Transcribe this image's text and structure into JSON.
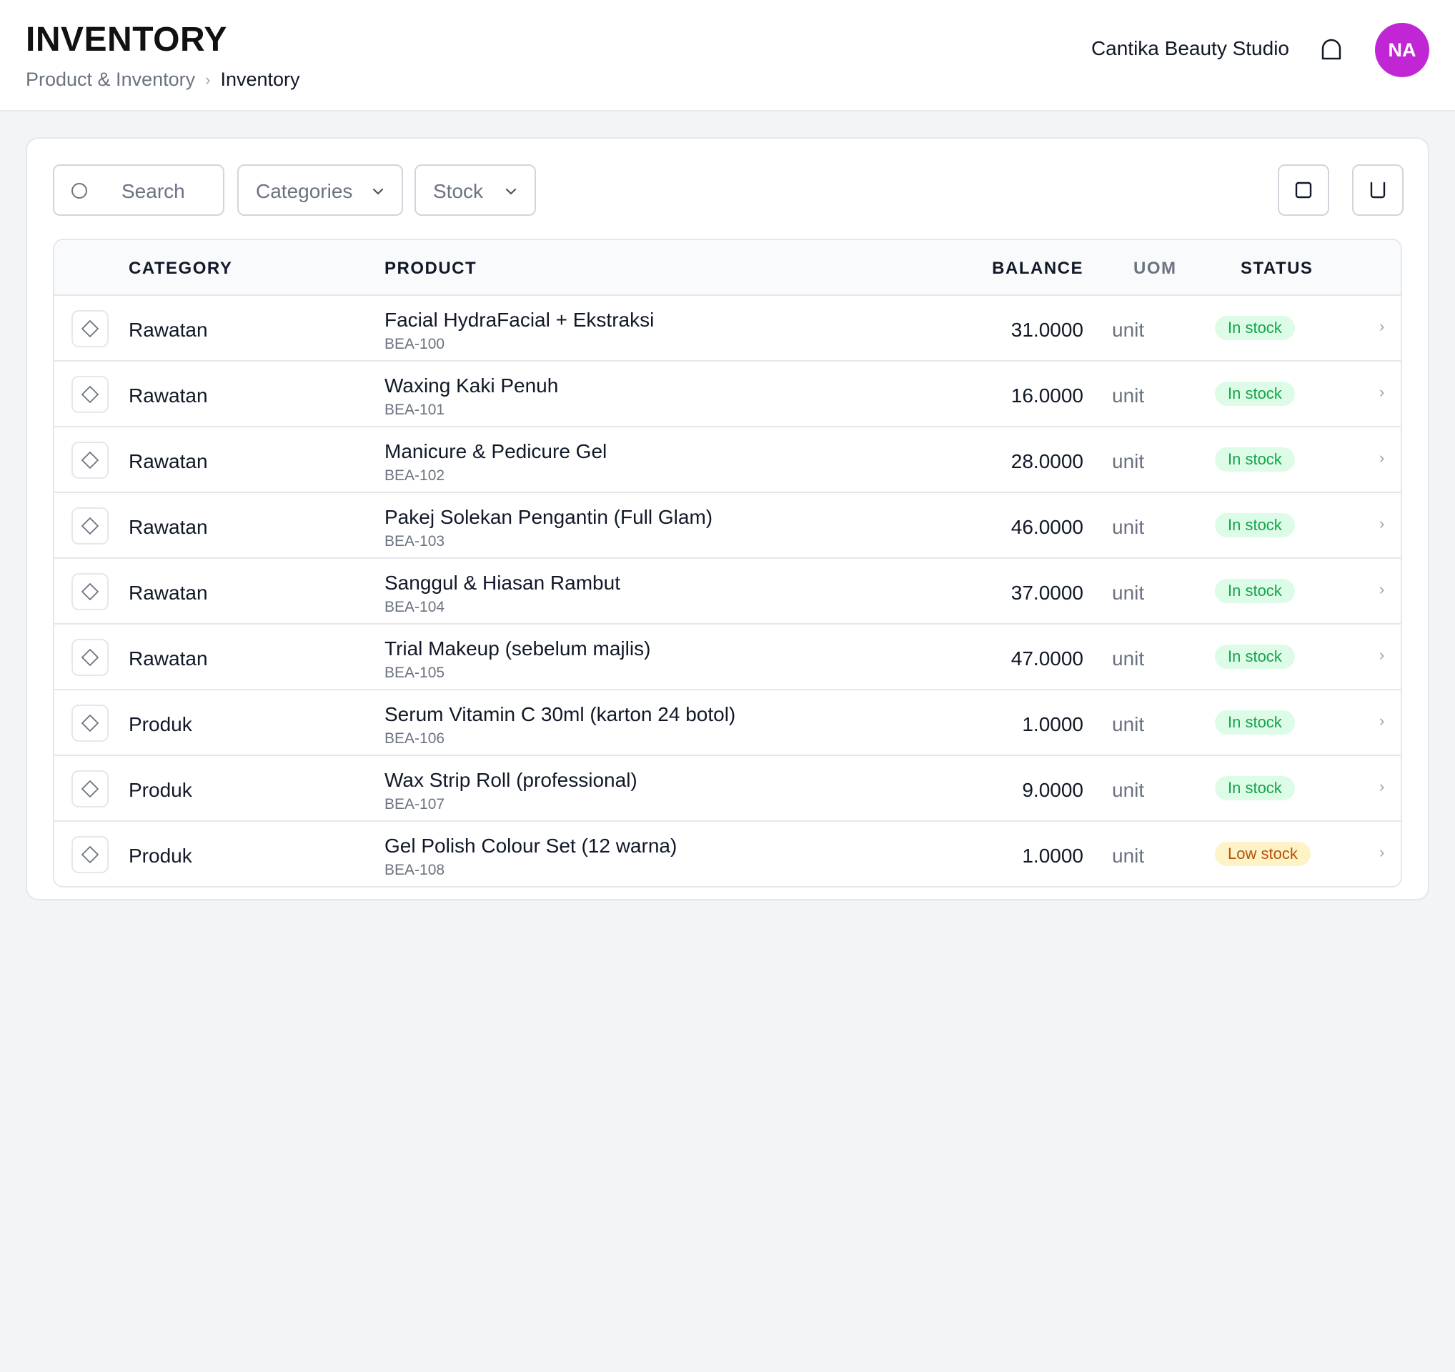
{
  "header": {
    "title": "INVENTORY",
    "breadcrumb": [
      "Product & Inventory",
      "Inventory"
    ],
    "org_name": "Cantika Beauty Studio",
    "avatar_initials": "NA",
    "avatar_color": "#c026d3"
  },
  "filters": {
    "search_placeholder": "Search",
    "categories_label": "Categories",
    "stock_label": "Stock"
  },
  "table": {
    "columns": {
      "category": "CATEGORY",
      "product": "PRODUCT",
      "balance": "BALANCE",
      "uom": "UOM",
      "status": "STATUS"
    },
    "rows": [
      {
        "category": "Rawatan",
        "name": "Facial HydraFacial + Ekstraksi",
        "sku": "BEA-100",
        "balance": "31.0000",
        "uom": "unit",
        "status": "In stock",
        "status_type": "in"
      },
      {
        "category": "Rawatan",
        "name": "Waxing Kaki Penuh",
        "sku": "BEA-101",
        "balance": "16.0000",
        "uom": "unit",
        "status": "In stock",
        "status_type": "in"
      },
      {
        "category": "Rawatan",
        "name": "Manicure & Pedicure Gel",
        "sku": "BEA-102",
        "balance": "28.0000",
        "uom": "unit",
        "status": "In stock",
        "status_type": "in"
      },
      {
        "category": "Rawatan",
        "name": "Pakej Solekan Pengantin (Full Glam)",
        "sku": "BEA-103",
        "balance": "46.0000",
        "uom": "unit",
        "status": "In stock",
        "status_type": "in"
      },
      {
        "category": "Rawatan",
        "name": "Sanggul & Hiasan Rambut",
        "sku": "BEA-104",
        "balance": "37.0000",
        "uom": "unit",
        "status": "In stock",
        "status_type": "in"
      },
      {
        "category": "Rawatan",
        "name": "Trial Makeup (sebelum majlis)",
        "sku": "BEA-105",
        "balance": "47.0000",
        "uom": "unit",
        "status": "In stock",
        "status_type": "in"
      },
      {
        "category": "Produk",
        "name": "Serum Vitamin C 30ml (karton 24 botol)",
        "sku": "BEA-106",
        "balance": "1.0000",
        "uom": "unit",
        "status": "In stock",
        "status_type": "in"
      },
      {
        "category": "Produk",
        "name": "Wax Strip Roll (professional)",
        "sku": "BEA-107",
        "balance": "9.0000",
        "uom": "unit",
        "status": "In stock",
        "status_type": "in"
      },
      {
        "category": "Produk",
        "name": "Gel Polish Colour Set (12 warna)",
        "sku": "BEA-108",
        "balance": "1.0000",
        "uom": "unit",
        "status": "Low stock",
        "status_type": "low"
      }
    ]
  }
}
